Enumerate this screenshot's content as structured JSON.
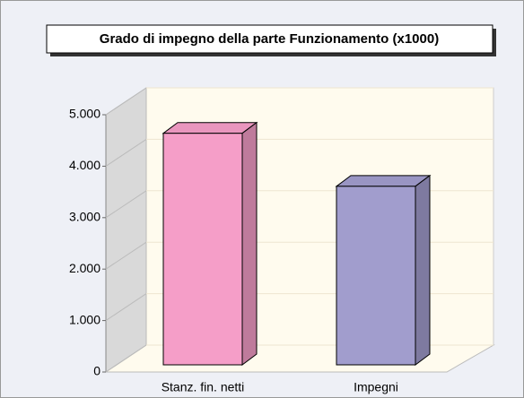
{
  "chart_data": {
    "type": "bar3d",
    "title": "Grado di impegno della parte Funzionamento (x1000)",
    "categories": [
      "Stanz. fin. netti",
      "Impegni"
    ],
    "series": [
      {
        "colors": [
          "#f59ec8",
          "#a19dcd"
        ],
        "values": [
          4500,
          3470
        ]
      }
    ],
    "ylim": [
      0,
      5000
    ],
    "yticks": [
      0,
      {
        "value": 1000,
        "label": "1.000"
      },
      {
        "value": 2000,
        "label": "2.000"
      },
      {
        "value": 3000,
        "label": "3.000"
      },
      {
        "value": 4000,
        "label": "4.000"
      },
      {
        "value": 5000,
        "label": "5.000"
      }
    ],
    "grid": true
  }
}
